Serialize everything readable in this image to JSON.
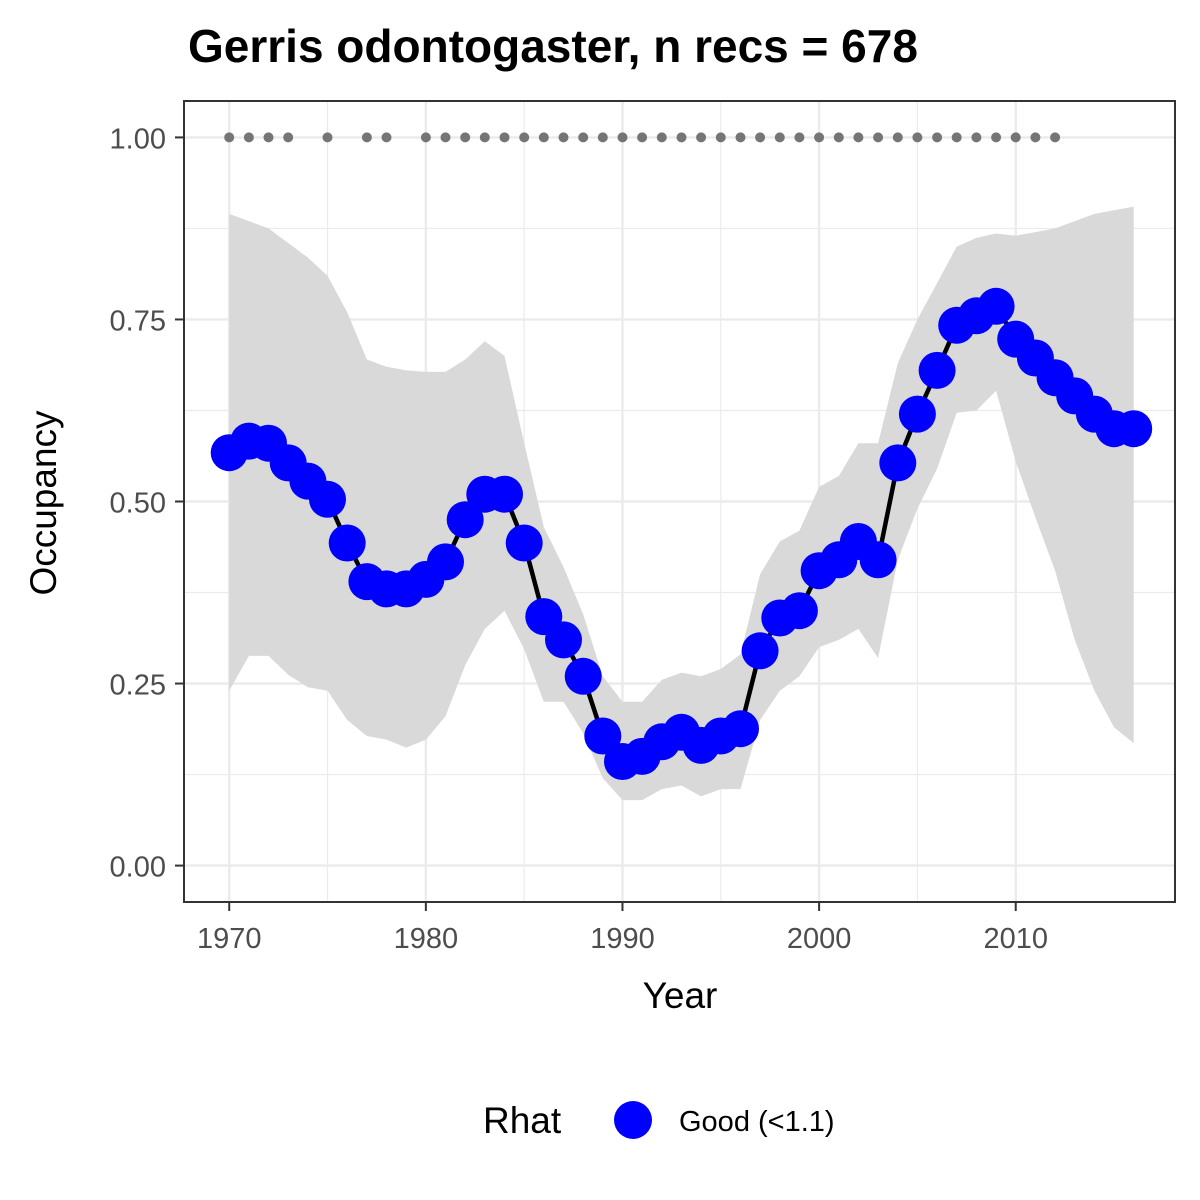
{
  "chart_data": {
    "type": "line",
    "title": "Gerris odontogaster, n recs = 678",
    "xlabel": "Year",
    "ylabel": "Occupancy",
    "xlim": [
      1967.7,
      2018.1
    ],
    "ylim": [
      -0.05,
      1.05
    ],
    "x_ticks": [
      1970,
      1980,
      1990,
      2000,
      2010
    ],
    "x_tick_labels": [
      "1970",
      "1980",
      "1990",
      "2000",
      "2010"
    ],
    "y_ticks": [
      0,
      0.25,
      0.5,
      0.75,
      1
    ],
    "y_tick_labels": [
      "0.00",
      "0.25",
      "0.50",
      "0.75",
      "1.00"
    ],
    "grid": true,
    "legend": {
      "title": "Rhat",
      "position": "bottom",
      "entries": [
        {
          "label": "Good (<1.1)",
          "color": "#0000FF"
        }
      ]
    },
    "colors": {
      "points": "#0000FF",
      "line": "#000000",
      "ribbon": "#d9d9d9",
      "record_dots": "#757575"
    },
    "series": [
      {
        "years": [
          1970,
          1971,
          1972,
          1973,
          1974,
          1975,
          1976,
          1977,
          1978,
          1979,
          1980,
          1981,
          1982,
          1983,
          1984,
          1985,
          1986,
          1987,
          1988,
          1989,
          1990,
          1991,
          1992,
          1993,
          1994,
          1995,
          1996,
          1997,
          1998,
          1999,
          2000,
          2001,
          2002,
          2003,
          2004,
          2005,
          2006,
          2007,
          2008,
          2009,
          2010,
          2011,
          2012,
          2013,
          2014,
          2015,
          2016
        ],
        "values": [
          0.567,
          0.583,
          0.58,
          0.553,
          0.528,
          0.503,
          0.443,
          0.39,
          0.38,
          0.38,
          0.393,
          0.417,
          0.475,
          0.51,
          0.51,
          0.443,
          0.342,
          0.31,
          0.26,
          0.178,
          0.143,
          0.15,
          0.17,
          0.183,
          0.165,
          0.178,
          0.188,
          0.295,
          0.34,
          0.35,
          0.405,
          0.42,
          0.445,
          0.42,
          0.553,
          0.62,
          0.68,
          0.742,
          0.755,
          0.768,
          0.723,
          0.697,
          0.67,
          0.645,
          0.62,
          0.6,
          0.6
        ],
        "upper": [
          0.895,
          0.885,
          0.875,
          0.855,
          0.835,
          0.81,
          0.76,
          0.695,
          0.685,
          0.68,
          0.678,
          0.678,
          0.695,
          0.72,
          0.7,
          0.58,
          0.465,
          0.41,
          0.345,
          0.26,
          0.225,
          0.225,
          0.255,
          0.265,
          0.26,
          0.27,
          0.29,
          0.4,
          0.445,
          0.46,
          0.52,
          0.535,
          0.58,
          0.58,
          0.69,
          0.75,
          0.8,
          0.85,
          0.862,
          0.868,
          0.865,
          0.87,
          0.875,
          0.885,
          0.895,
          0.9,
          0.905
        ],
        "lower": [
          0.24,
          0.288,
          0.288,
          0.262,
          0.245,
          0.24,
          0.2,
          0.178,
          0.173,
          0.162,
          0.173,
          0.205,
          0.275,
          0.325,
          0.35,
          0.297,
          0.225,
          0.225,
          0.182,
          0.12,
          0.09,
          0.09,
          0.105,
          0.11,
          0.095,
          0.105,
          0.105,
          0.2,
          0.24,
          0.26,
          0.3,
          0.31,
          0.325,
          0.285,
          0.42,
          0.49,
          0.545,
          0.622,
          0.625,
          0.652,
          0.555,
          0.478,
          0.405,
          0.31,
          0.24,
          0.19,
          0.168
        ]
      }
    ],
    "record_years": [
      1970,
      1971,
      1972,
      1973,
      1975,
      1977,
      1978,
      1980,
      1981,
      1982,
      1983,
      1984,
      1985,
      1986,
      1987,
      1988,
      1989,
      1990,
      1991,
      1992,
      1993,
      1994,
      1995,
      1996,
      1997,
      1998,
      1999,
      2000,
      2001,
      2002,
      2003,
      2004,
      2005,
      2006,
      2007,
      2008,
      2009,
      2010,
      2011,
      2012
    ],
    "record_value": 1.0
  }
}
